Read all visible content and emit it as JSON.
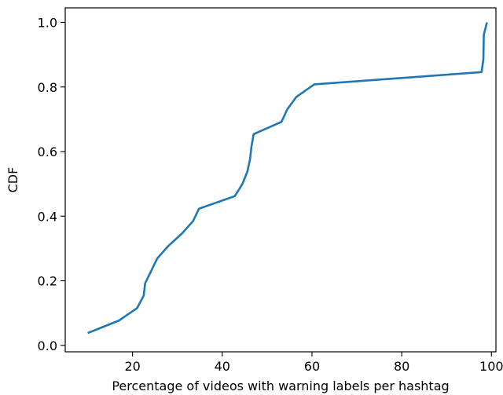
{
  "chart_data": {
    "type": "line",
    "title": "",
    "xlabel": "Percentage of videos with warning labels per hashtag",
    "ylabel": "CDF",
    "xlim": [
      5,
      101
    ],
    "ylim": [
      -0.02,
      1.045
    ],
    "grid": false,
    "xticks": [
      20,
      40,
      60,
      80,
      100
    ],
    "xtick_labels": [
      "20",
      "40",
      "60",
      "80",
      "100"
    ],
    "yticks": [
      0.0,
      0.2,
      0.4,
      0.6,
      0.8,
      1.0
    ],
    "ytick_labels": [
      "0.0",
      "0.2",
      "0.4",
      "0.6",
      "0.8",
      "1.0"
    ],
    "series": [
      {
        "color": "#1f77b4",
        "x": [
          10.0,
          17.0,
          21.0,
          22.5,
          22.8,
          25.5,
          28.0,
          31.0,
          33.5,
          34.8,
          42.8,
          44.5,
          45.6,
          46.2,
          46.5,
          47.0,
          53.2,
          54.5,
          56.5,
          60.5,
          97.8,
          98.2,
          98.3,
          99.0
        ],
        "y": [
          0.038,
          0.077,
          0.115,
          0.154,
          0.192,
          0.269,
          0.308,
          0.346,
          0.385,
          0.423,
          0.462,
          0.5,
          0.538,
          0.577,
          0.615,
          0.654,
          0.692,
          0.731,
          0.769,
          0.808,
          0.846,
          0.885,
          0.962,
          1.0
        ]
      }
    ]
  }
}
